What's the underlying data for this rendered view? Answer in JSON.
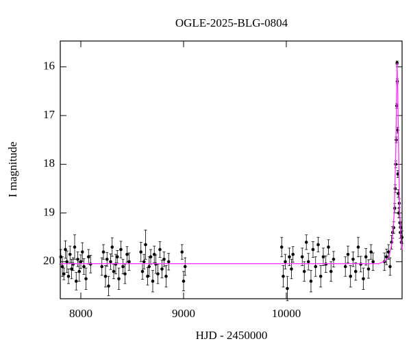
{
  "chart_data": {
    "type": "scatter",
    "title": "OGLE-2025-BLG-0804",
    "xlabel": "HJD - 2450000",
    "ylabel": "I magnitude",
    "xlim": [
      7800,
      11127
    ],
    "ylim": [
      15.47,
      20.76
    ],
    "y_inverted": true,
    "xticks": [
      8000,
      9000,
      10000
    ],
    "yticks": [
      16,
      17,
      18,
      19,
      20
    ],
    "series": [
      {
        "type": "scatter",
        "color": "#000000",
        "x": [
          7805,
          7820,
          7835,
          7850,
          7865,
          7880,
          7895,
          7910,
          7925,
          7940,
          7955,
          7970,
          7985,
          8000,
          8015,
          8030,
          8050,
          8075,
          8095,
          8205,
          8220,
          8240,
          8255,
          8270,
          8290,
          8305,
          8320,
          8340,
          8355,
          8370,
          8390,
          8410,
          8430,
          8450,
          8470,
          8585,
          8600,
          8615,
          8630,
          8650,
          8665,
          8680,
          8700,
          8715,
          8730,
          8750,
          8770,
          8790,
          8810,
          8830,
          8855,
          8985,
          9000,
          9015,
          9955,
          9970,
          9990,
          10010,
          10030,
          10050,
          10065,
          10155,
          10175,
          10195,
          10215,
          10240,
          10260,
          10285,
          10310,
          10335,
          10360,
          10385,
          10410,
          10435,
          10460,
          10575,
          10600,
          10625,
          10650,
          10675,
          10700,
          10725,
          10750,
          10775,
          10800,
          10825,
          10845,
          10955,
          10975,
          10995,
          11010,
          11025,
          11035,
          11045,
          11055,
          11060,
          11065,
          11070,
          11075,
          11078,
          11080,
          11083,
          11086,
          11090,
          11095,
          11100,
          11105,
          11110,
          11115,
          11120,
          11125
        ],
        "values": [
          19.9,
          20.1,
          20.25,
          19.75,
          20.0,
          20.3,
          19.85,
          20.15,
          20.05,
          19.7,
          20.4,
          19.95,
          20.2,
          20.0,
          19.8,
          20.1,
          20.35,
          19.9,
          20.05,
          20.1,
          19.8,
          20.3,
          19.95,
          20.5,
          20.0,
          19.7,
          20.2,
          20.05,
          19.9,
          20.35,
          19.75,
          20.1,
          20.25,
          19.85,
          20.0,
          19.8,
          20.2,
          20.0,
          19.65,
          20.3,
          20.1,
          19.9,
          20.4,
          19.85,
          20.05,
          20.25,
          19.75,
          20.15,
          19.95,
          20.3,
          20.0,
          19.8,
          20.4,
          20.1,
          19.7,
          20.3,
          20.0,
          20.55,
          19.9,
          20.15,
          19.85,
          19.9,
          20.2,
          19.6,
          20.0,
          20.4,
          19.75,
          20.1,
          19.65,
          20.3,
          19.9,
          20.05,
          19.7,
          20.2,
          19.95,
          20.1,
          19.85,
          20.3,
          19.95,
          20.2,
          19.7,
          20.05,
          20.35,
          19.9,
          20.15,
          19.8,
          20.0,
          20.0,
          19.9,
          19.8,
          20.1,
          19.6,
          19.4,
          19.3,
          18.9,
          18.5,
          18.0,
          17.5,
          16.8,
          15.92,
          16.3,
          17.3,
          18.2,
          18.6,
          19.0,
          18.8,
          19.2,
          19.4,
          19.3,
          19.6,
          19.5
        ],
        "errors": [
          0.15,
          0.2,
          0.12,
          0.18,
          0.22,
          0.15,
          0.17,
          0.2,
          0.13,
          0.25,
          0.18,
          0.15,
          0.2,
          0.14,
          0.19,
          0.16,
          0.22,
          0.15,
          0.18,
          0.18,
          0.15,
          0.22,
          0.14,
          0.2,
          0.16,
          0.19,
          0.15,
          0.2,
          0.13,
          0.22,
          0.17,
          0.15,
          0.2,
          0.16,
          0.18,
          0.2,
          0.16,
          0.15,
          0.3,
          0.18,
          0.2,
          0.15,
          0.22,
          0.17,
          0.19,
          0.2,
          0.16,
          0.18,
          0.15,
          0.22,
          0.17,
          0.15,
          0.2,
          0.18,
          0.2,
          0.22,
          0.15,
          0.25,
          0.18,
          0.2,
          0.16,
          0.18,
          0.2,
          0.15,
          0.17,
          0.22,
          0.16,
          0.2,
          0.15,
          0.22,
          0.18,
          0.17,
          0.15,
          0.2,
          0.16,
          0.2,
          0.17,
          0.22,
          0.15,
          0.18,
          0.2,
          0.16,
          0.22,
          0.17,
          0.19,
          0.15,
          0.18,
          0.18,
          0.16,
          0.15,
          0.18,
          0.14,
          0.12,
          0.12,
          0.1,
          0.08,
          0.07,
          0.06,
          0.05,
          0.04,
          0.05,
          0.06,
          0.07,
          0.08,
          0.1,
          0.09,
          0.1,
          0.12,
          0.12,
          0.14,
          0.13
        ]
      },
      {
        "type": "line",
        "color": "#ff33ff",
        "x": [
          7800,
          10900,
          10950,
          11000,
          11030,
          11050,
          11065,
          11078,
          11085,
          11095,
          11105,
          11115,
          11127
        ],
        "values": [
          20.04,
          20.04,
          20.0,
          19.9,
          19.6,
          19.0,
          17.8,
          15.92,
          16.5,
          18.0,
          19.0,
          19.5,
          19.75
        ]
      }
    ]
  }
}
